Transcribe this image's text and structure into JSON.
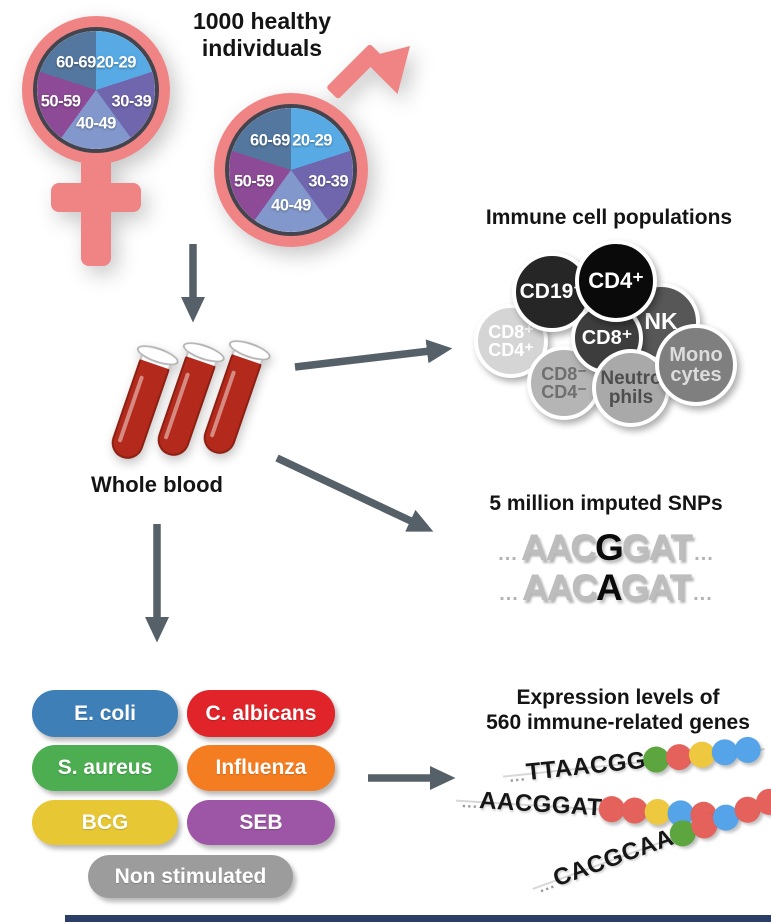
{
  "heading": "1000 healthy individuals",
  "cohort": {
    "age_groups": [
      "20-29",
      "30-39",
      "40-49",
      "50-59",
      "60-69"
    ],
    "slice_colors": [
      "#58aae4",
      "#7066ae",
      "#8298cc",
      "#8d4b97",
      "#53779e"
    ],
    "symbol_color": "#f08384"
  },
  "whole_blood_label": "Whole blood",
  "immune_cells": {
    "title": "Immune cell populations",
    "cells": [
      {
        "label": [
          "CD8⁺",
          "CD4⁺"
        ],
        "color": "#d5d5d5",
        "text_color": "#ffffff"
      },
      {
        "label": [
          "CD19⁺"
        ],
        "color": "#262626",
        "text_color": "#ffffff"
      },
      {
        "label": [
          "NK"
        ],
        "color": "#575757",
        "text_color": "#ffffff"
      },
      {
        "label": [
          "CD8⁻",
          "CD4⁻"
        ],
        "color": "#b5b5b5",
        "text_color": "#6f6f6f"
      },
      {
        "label": [
          "CD8⁺"
        ],
        "color": "#3d3d3d",
        "text_color": "#ffffff"
      },
      {
        "label": [
          "CD4⁺"
        ],
        "color": "#0a0a0a",
        "text_color": "#ffffff"
      },
      {
        "label": [
          "Neutro",
          "phils"
        ],
        "color": "#a9a9a9",
        "text_color": "#4e4e4e"
      },
      {
        "label": [
          "Mono",
          "cytes"
        ],
        "color": "#7f7f7f",
        "text_color": "#dcdcdc"
      }
    ]
  },
  "snps": {
    "title": "5 million imputed SNPs",
    "rows": [
      {
        "prefix": "...",
        "before": "AAC",
        "snp": "G",
        "after": "GAT",
        "suffix": "..."
      },
      {
        "prefix": "...",
        "before": "AAC",
        "snp": "A",
        "after": "GAT",
        "suffix": "..."
      }
    ]
  },
  "stimuli": {
    "items": [
      {
        "label": "E. coli",
        "color": "#3e7fb7"
      },
      {
        "label": "C. albicans",
        "color": "#e02429"
      },
      {
        "label": "S. aureus",
        "color": "#4cae51"
      },
      {
        "label": "Influenza",
        "color": "#f57d21"
      },
      {
        "label": "BCG",
        "color": "#e7c733"
      },
      {
        "label": "SEB",
        "color": "#9d56a6"
      },
      {
        "label": "Non stimulated",
        "color": "#9c9c9c"
      }
    ]
  },
  "expression": {
    "title_line1": "Expression levels of",
    "title_line2": "560 immune-related genes",
    "strands": [
      {
        "prefix": "...",
        "seq": "TTAACGG",
        "dots": [
          "#5da53f",
          "#e4625b",
          "#eec83e",
          "#55a4ea",
          "#55a4ea"
        ]
      },
      {
        "prefix": "...",
        "seq": "AACGGAT",
        "dots": [
          "#e4625b",
          "#e4625b",
          "#eec83e",
          "#55a4ea",
          "#e4625b"
        ]
      },
      {
        "prefix": "...",
        "seq": "CACGCAA",
        "dots": [
          "#5da53f",
          "#e4625b",
          "#55a4ea",
          "#e4625b",
          "#e4625b"
        ]
      }
    ]
  },
  "arrow_color": "#566069"
}
